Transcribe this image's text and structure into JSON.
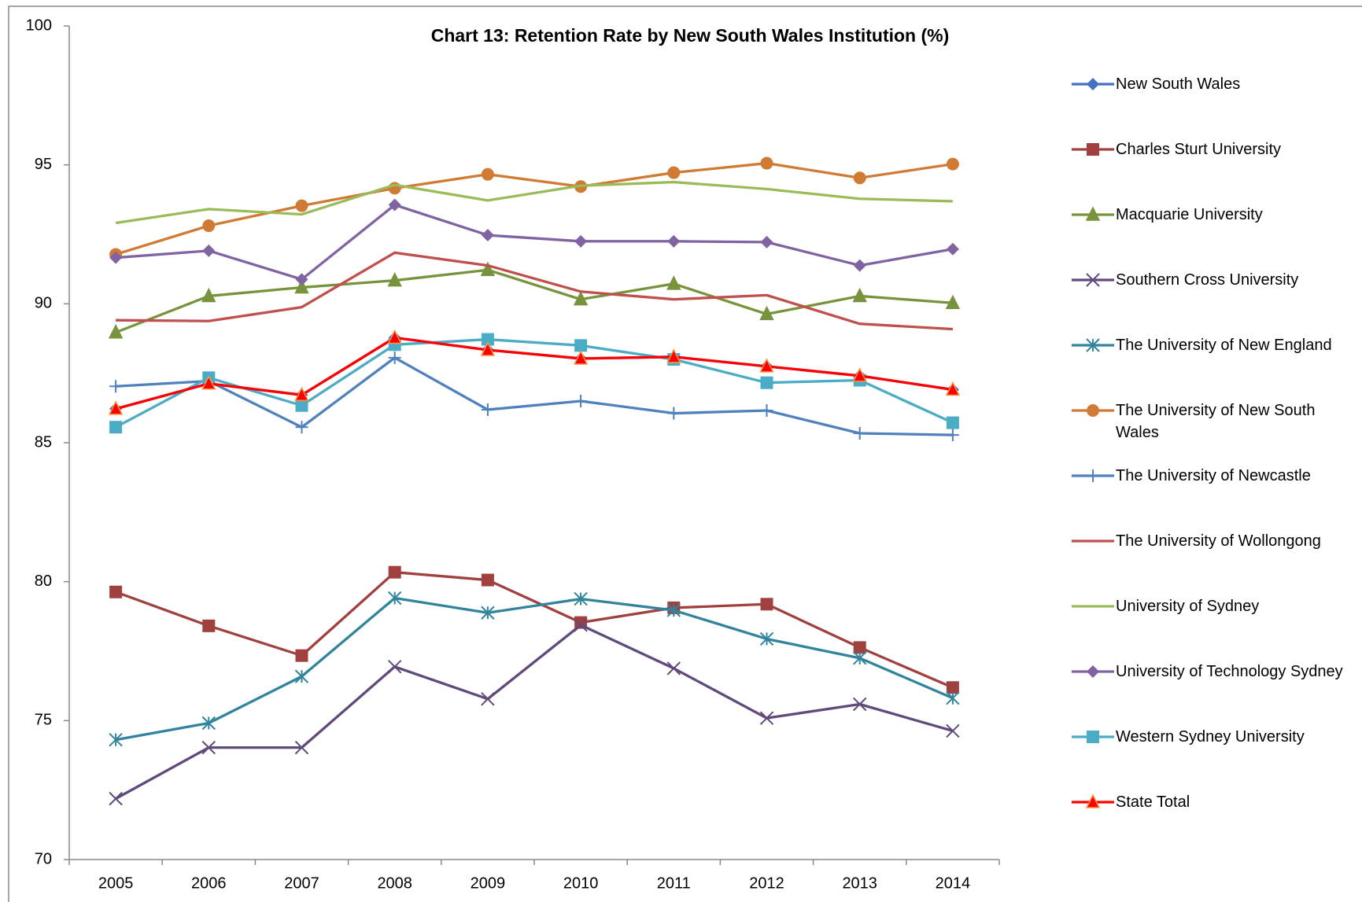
{
  "chart_data": {
    "type": "line",
    "title": "Chart 13: Retention Rate by New South Wales Institution (%)",
    "categories": [
      "2005",
      "2006",
      "2007",
      "2008",
      "2009",
      "2010",
      "2011",
      "2012",
      "2013",
      "2014"
    ],
    "ylim": [
      70,
      100
    ],
    "yticks": [
      70,
      75,
      80,
      85,
      90,
      95,
      100
    ],
    "grid": false,
    "legend": "right",
    "series": [
      {
        "name": "New South Wales",
        "color": "#4472c4",
        "marker": "diamond",
        "values": [
          86.22,
          87.13,
          86.72,
          88.78,
          88.34,
          88.03,
          88.09,
          87.75,
          87.41,
          86.91
        ]
      },
      {
        "name": "Charles Sturt University",
        "color": "#a0413f",
        "marker": "square",
        "values": [
          79.63,
          78.41,
          77.34,
          80.34,
          80.06,
          78.53,
          79.06,
          79.19,
          77.63,
          76.19
        ]
      },
      {
        "name": "Macquarie University",
        "color": "#77933c",
        "marker": "triangle",
        "values": [
          88.97,
          90.28,
          90.59,
          90.84,
          91.22,
          90.16,
          90.72,
          89.63,
          90.28,
          90.03
        ]
      },
      {
        "name": "Southern Cross University",
        "color": "#604a7b",
        "marker": "x",
        "values": [
          72.19,
          74.03,
          74.03,
          76.94,
          75.78,
          78.44,
          76.88,
          75.09,
          75.59,
          74.63
        ]
      },
      {
        "name": "The University of New England",
        "color": "#31849b",
        "marker": "asterisk",
        "values": [
          74.31,
          74.91,
          76.59,
          79.41,
          78.88,
          79.38,
          78.97,
          77.94,
          77.25,
          75.81
        ]
      },
      {
        "name": "The University of New South Wales",
        "color": "#d07a34",
        "marker": "circle",
        "values": [
          91.78,
          92.81,
          93.53,
          94.16,
          94.66,
          94.22,
          94.72,
          95.06,
          94.53,
          95.03
        ]
      },
      {
        "name": "The University of Newcastle",
        "color": "#4f81bd",
        "marker": "plus",
        "values": [
          87.03,
          87.22,
          85.56,
          88.06,
          86.19,
          86.5,
          86.06,
          86.16,
          85.34,
          85.28
        ]
      },
      {
        "name": "The University of Wollongong",
        "color": "#c0504d",
        "marker": "none",
        "values": [
          89.41,
          89.38,
          89.88,
          91.84,
          91.38,
          90.44,
          90.16,
          90.31,
          89.28,
          89.09
        ]
      },
      {
        "name": "University of Sydney",
        "color": "#9bbb59",
        "marker": "none",
        "values": [
          92.91,
          93.41,
          93.22,
          94.28,
          93.72,
          94.25,
          94.38,
          94.13,
          93.78,
          93.69
        ]
      },
      {
        "name": "University of Technology Sydney",
        "color": "#8064a2",
        "marker": "diamond",
        "values": [
          91.66,
          91.91,
          90.88,
          93.56,
          92.47,
          92.25,
          92.25,
          92.22,
          91.38,
          91.97
        ]
      },
      {
        "name": "Western Sydney University",
        "color": "#4bacc6",
        "marker": "square",
        "values": [
          85.56,
          87.34,
          86.34,
          88.53,
          88.72,
          88.5,
          88.0,
          87.16,
          87.25,
          85.72
        ]
      },
      {
        "name": "State Total",
        "color": "#ff0000",
        "marker": "triangle",
        "values": [
          86.22,
          87.13,
          86.72,
          88.78,
          88.34,
          88.03,
          88.09,
          87.75,
          87.41,
          86.91
        ]
      }
    ]
  }
}
